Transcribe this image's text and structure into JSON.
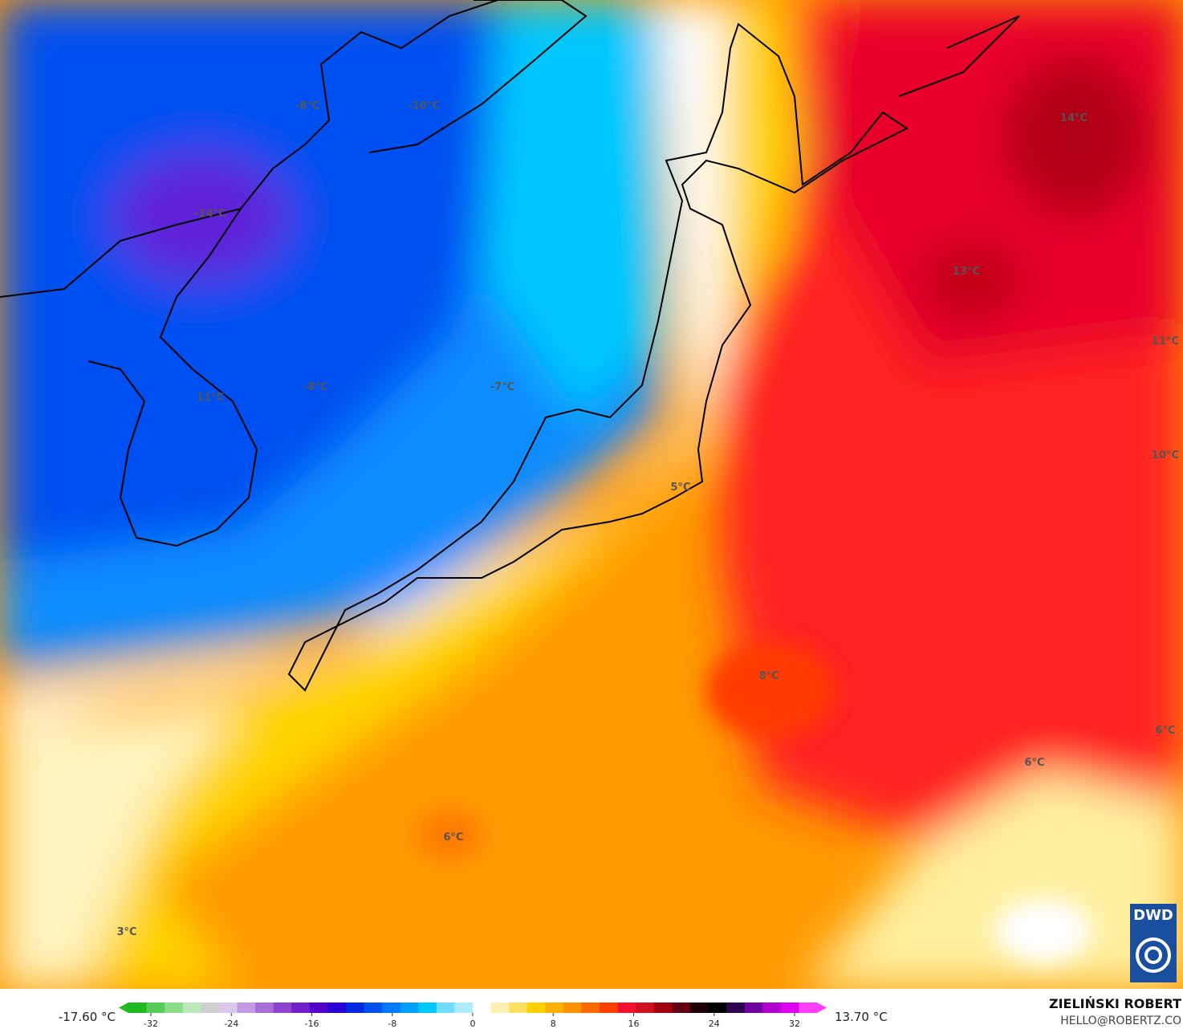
{
  "map": {
    "labels": [
      "-8°C",
      "-10°C",
      "-14°C",
      "14°C",
      "13°C",
      "11°C",
      "-8°C",
      "-7°C",
      "11°C",
      "10°C",
      "5°C",
      "8°C",
      "6°C",
      "6°C",
      "6°C",
      "3°C"
    ],
    "logo": "DWD",
    "author": "ZIELIŃSKI ROBERT",
    "contact": "HELLO@ROBERTZ.CO"
  },
  "colorbar": {
    "min_label": "-17.60 °C",
    "max_label": "13.70 °C",
    "ticks": [
      -32,
      -24,
      -16,
      -8,
      0,
      8,
      16,
      24,
      32
    ],
    "lim": [
      -32,
      32
    ],
    "colors": [
      "#22b922",
      "#55cc55",
      "#88dd88",
      "#bce8bc",
      "#cfcfcf",
      "#dcc8ec",
      "#c49ae0",
      "#a86ed8",
      "#8c44d0",
      "#7020c8",
      "#5000c8",
      "#2800d8",
      "#0028e0",
      "#0050f0",
      "#0078ff",
      "#00a0ff",
      "#00c8ff",
      "#70dcff",
      "#b0ecff",
      "#ffffff",
      "#fff0b0",
      "#ffe060",
      "#ffd000",
      "#ffb000",
      "#ff9000",
      "#ff6a00",
      "#ff4000",
      "#f01030",
      "#d01020",
      "#a00010",
      "#600010",
      "#200008",
      "#000000",
      "#300050",
      "#7000a0",
      "#b000d0",
      "#e000f0",
      "#ff40ff"
    ]
  }
}
